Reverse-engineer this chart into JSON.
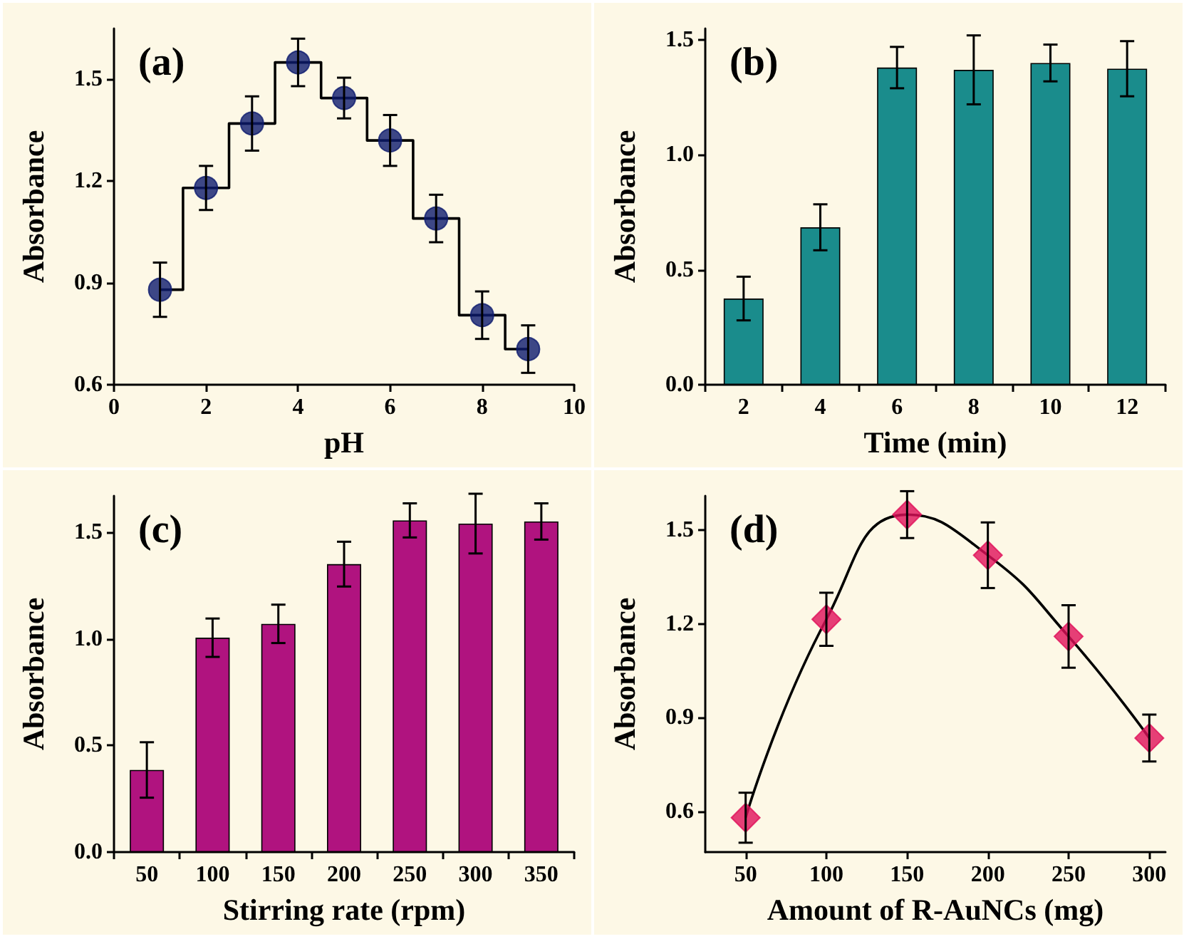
{
  "chart_data": [
    {
      "type": "step",
      "xlabel": "pH",
      "ylabel": "Absorbance",
      "annotations": [
        "(a)"
      ],
      "x": [
        1,
        2,
        3,
        4,
        5,
        6,
        7,
        8,
        9
      ],
      "xlim": [
        0,
        10
      ],
      "xticks": [
        0,
        2,
        4,
        6,
        8,
        10
      ],
      "ylim": [
        0.6,
        1.65
      ],
      "yticks": [
        0.6,
        0.9,
        1.2,
        1.5
      ],
      "series": [
        {
          "color": "#000000",
          "marker": "none",
          "values": [
            0.88,
            1.18,
            1.37,
            1.55,
            1.445,
            1.32,
            1.09,
            0.805,
            0.705
          ]
        },
        {
          "type": "scatter",
          "marker": "circle",
          "color": "#0d1a6e",
          "values": [
            0.88,
            1.18,
            1.37,
            1.55,
            1.445,
            1.32,
            1.09,
            0.805,
            0.705
          ],
          "errors": [
            0.08,
            0.065,
            0.08,
            0.07,
            0.06,
            0.075,
            0.07,
            0.07,
            0.07
          ]
        }
      ]
    },
    {
      "type": "bar",
      "xlabel": "Time (min)",
      "ylabel": "Absorbance",
      "annotations": [
        "(b)"
      ],
      "categories": [
        "2",
        "4",
        "6",
        "8",
        "10",
        "12"
      ],
      "ylim": [
        0,
        1.55
      ],
      "yticks": [
        {
          "value": 0,
          "label": "0.0"
        },
        {
          "value": 0.5,
          "label": "0.5"
        },
        {
          "value": 1,
          "label": "1.0"
        },
        {
          "value": 1.5,
          "label": "1.5"
        }
      ],
      "series": [
        {
          "color": "#1a8c8c",
          "values": [
            0.375,
            0.685,
            1.38,
            1.37,
            1.4,
            1.375
          ],
          "errors": [
            0.095,
            0.1,
            0.09,
            0.15,
            0.08,
            0.12
          ]
        }
      ]
    },
    {
      "type": "bar",
      "xlabel": "Stirring rate (rpm)",
      "ylabel": "Absorbance",
      "annotations": [
        "(c)"
      ],
      "categories": [
        "50",
        "100",
        "150",
        "200",
        "250",
        "300",
        "350"
      ],
      "ylim": [
        0,
        1.67
      ],
      "yticks": [
        {
          "value": 0,
          "label": "0.0"
        },
        {
          "value": 0.5,
          "label": "0.5"
        },
        {
          "value": 1,
          "label": "1.0"
        },
        {
          "value": 1.5,
          "label": "1.5"
        }
      ],
      "series": [
        {
          "color": "#b0137f",
          "values": [
            0.385,
            1.005,
            1.07,
            1.35,
            1.555,
            1.54,
            1.55
          ],
          "errors": [
            0.13,
            0.09,
            0.09,
            0.105,
            0.08,
            0.14,
            0.085
          ]
        }
      ]
    },
    {
      "type": "line",
      "xlabel": "Amount of R-AuNCs (mg)",
      "ylabel": "Absorbance",
      "annotations": [
        "(d)"
      ],
      "x": [
        50,
        100,
        150,
        200,
        250,
        300
      ],
      "xlim": [
        25,
        310
      ],
      "xticks": [
        50,
        100,
        150,
        200,
        250,
        300
      ],
      "ylim": [
        0.47,
        1.61
      ],
      "yticks": [
        0.6,
        0.9,
        1.2,
        1.5
      ],
      "series": [
        {
          "color": "#000000",
          "marker": "none",
          "values": [
            0.58,
            1.215,
            1.55,
            1.42,
            1.16,
            0.835
          ]
        },
        {
          "type": "scatter",
          "marker": "diamond",
          "color": "#e0105a",
          "values": [
            0.58,
            1.215,
            1.55,
            1.42,
            1.16,
            0.835
          ],
          "errors": [
            0.08,
            0.085,
            0.075,
            0.105,
            0.1,
            0.075
          ]
        }
      ]
    }
  ]
}
